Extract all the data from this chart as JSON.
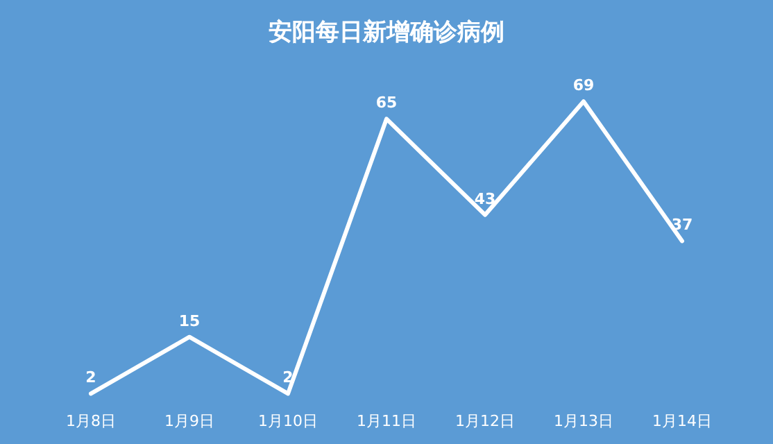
{
  "chart_data": {
    "type": "line",
    "title": "安阳每日新增确诊病例",
    "categories": [
      "1月8日",
      "1月9日",
      "1月10日",
      "1月11日",
      "1月12日",
      "1月13日",
      "1月14日"
    ],
    "series": [
      {
        "color": "#ffffff",
        "values": [
          2,
          15,
          2,
          65,
          43,
          69,
          37
        ]
      }
    ],
    "data_labels": true,
    "tick_labels": "x",
    "marker": "none"
  }
}
